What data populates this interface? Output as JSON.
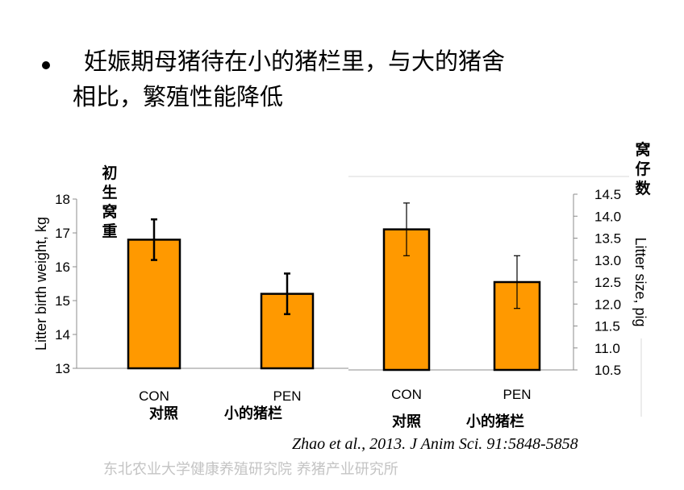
{
  "slide": {
    "bullet_line1": "妊娠期母猪待在小的猪栏里，与大的猪舍",
    "bullet_line2": "相比，繁殖性能降低",
    "citation": "Zhao et al., 2013. J Anim Sci. 91:5848-5858",
    "footer": "东北农业大学健康养殖研究院 养猪产业研究所"
  },
  "colors": {
    "bar_fill": "#FF9900",
    "bar_stroke": "#000000",
    "axis": "#8c8c8c",
    "footer": "#c4c4c4"
  },
  "chart_data": [
    {
      "type": "bar",
      "categories": [
        "CON",
        "PEN"
      ],
      "category_labels_cn": [
        "对照",
        "小的猪栏"
      ],
      "values": [
        16.8,
        15.2
      ],
      "error": [
        0.6,
        0.6
      ],
      "ylabel": "Litter birth weight, kg",
      "ylabel_cn": "初生窝重",
      "ylim": [
        13,
        18
      ],
      "yticks": [
        "13",
        "14",
        "15",
        "16",
        "17",
        "18"
      ],
      "grid": false
    },
    {
      "type": "bar",
      "categories": [
        "CON",
        "PEN"
      ],
      "category_labels_cn": [
        "对照",
        "小的猪栏"
      ],
      "values": [
        13.7,
        12.5
      ],
      "error": [
        0.6,
        0.6
      ],
      "ylabel": "Litter size, pig",
      "ylabel_cn": "窝仔数",
      "ylim": [
        10.5,
        14.5
      ],
      "yticks": [
        "10.5",
        "11.0",
        "11.5",
        "12.0",
        "12.5",
        "13.0",
        "13.5",
        "14.0",
        "14.5"
      ],
      "grid": false
    }
  ]
}
